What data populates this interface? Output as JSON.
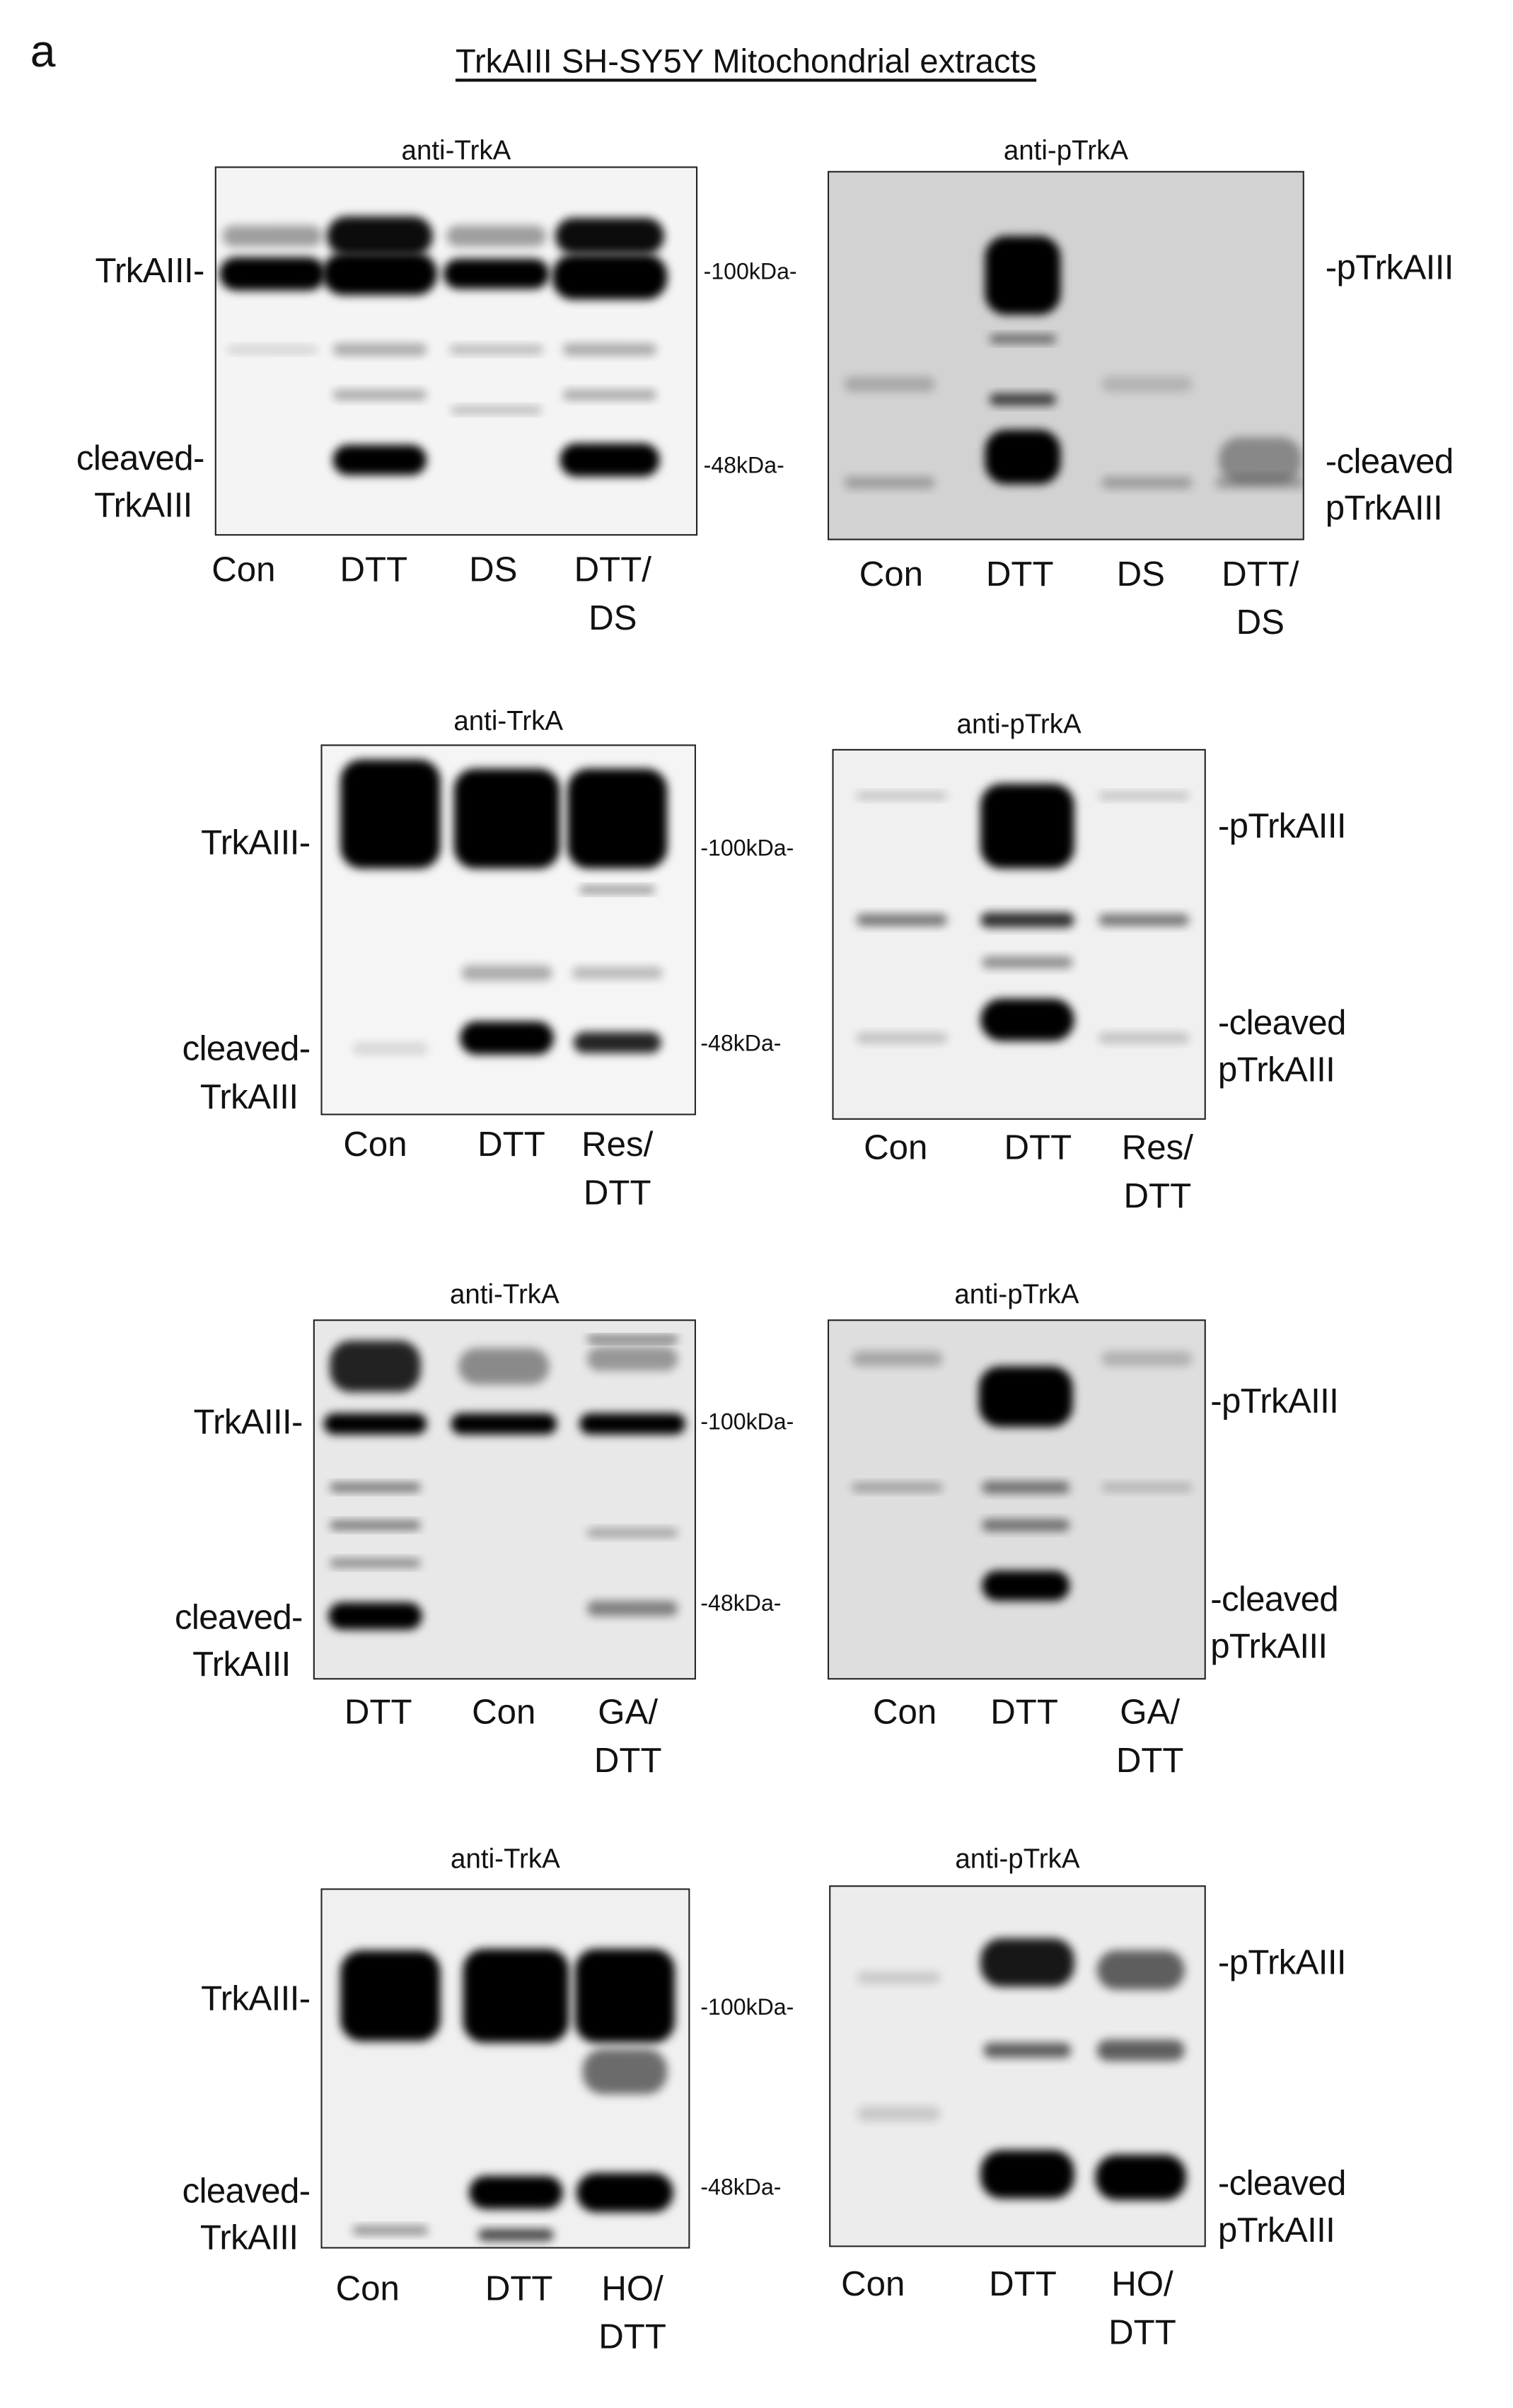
{
  "figure_label": "a",
  "title": "TrkAIII SH-SY5Y Mitochondrial extracts",
  "panels": [
    {
      "antibody": "anti-TrkA",
      "side_labels": [
        "TrkAIII-",
        "cleaved-",
        "TrkAIII"
      ],
      "markers": [
        "-100kDa-",
        "-48kDa-"
      ],
      "lanes": [
        [
          "Con"
        ],
        [
          "DTT"
        ],
        [
          "DS"
        ],
        [
          "DTT/",
          "DS"
        ]
      ]
    },
    {
      "antibody": "anti-pTrkA",
      "side_labels": [
        "-pTrkAIII",
        "-cleaved",
        "pTrkAIII"
      ],
      "markers": [],
      "lanes": [
        [
          "Con"
        ],
        [
          "DTT"
        ],
        [
          "DS"
        ],
        [
          "DTT/",
          "DS"
        ]
      ]
    },
    {
      "antibody": "anti-TrkA",
      "side_labels": [
        "TrkAIII-",
        "cleaved-",
        "TrkAIII"
      ],
      "markers": [
        "-100kDa-",
        "-48kDa-"
      ],
      "lanes": [
        [
          "Con"
        ],
        [
          "DTT"
        ],
        [
          "Res/",
          "DTT"
        ]
      ]
    },
    {
      "antibody": "anti-pTrkA",
      "side_labels": [
        "-pTrkAIII",
        "-cleaved",
        "pTrkAIII"
      ],
      "markers": [],
      "lanes": [
        [
          "Con"
        ],
        [
          "DTT"
        ],
        [
          "Res/",
          "DTT"
        ]
      ]
    },
    {
      "antibody": "anti-TrkA",
      "side_labels": [
        "TrkAIII-",
        "cleaved-",
        "TrkAIII"
      ],
      "markers": [
        "-100kDa-",
        "-48kDa-"
      ],
      "lanes": [
        [
          "DTT"
        ],
        [
          "Con"
        ],
        [
          "GA/",
          "DTT"
        ]
      ]
    },
    {
      "antibody": "anti-pTrkA",
      "side_labels": [
        "-pTrkAIII",
        "-cleaved",
        "pTrkAIII"
      ],
      "markers": [],
      "lanes": [
        [
          "Con"
        ],
        [
          "DTT"
        ],
        [
          "GA/",
          "DTT"
        ]
      ]
    },
    {
      "antibody": "anti-TrkA",
      "side_labels": [
        "TrkAIII-",
        "cleaved-",
        "TrkAIII"
      ],
      "markers": [
        "-100kDa-",
        "-48kDa-"
      ],
      "lanes": [
        [
          "Con"
        ],
        [
          "DTT"
        ],
        [
          "HO/",
          "DTT"
        ]
      ]
    },
    {
      "antibody": "anti-pTrkA",
      "side_labels": [
        "-pTrkAIII",
        "-cleaved",
        "pTrkAIII"
      ],
      "markers": [],
      "lanes": [
        [
          "Con"
        ],
        [
          "DTT"
        ],
        [
          "HO/",
          "DTT"
        ]
      ]
    }
  ]
}
